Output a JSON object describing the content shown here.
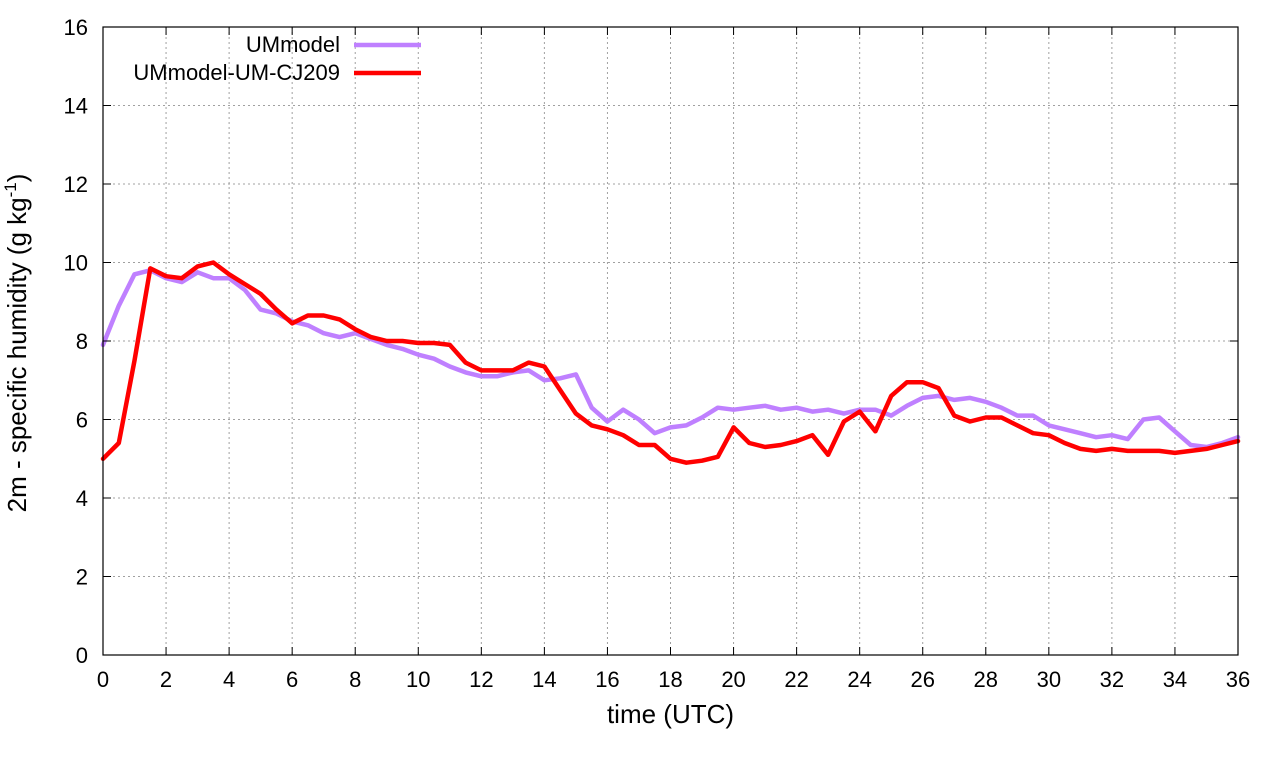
{
  "chart_data": {
    "type": "line",
    "title": "",
    "xlabel": "time (UTC)",
    "ylabel_main": "2m - specific humidity (g kg",
    "ylabel_sup": "-1",
    "ylabel_close": ")",
    "xlim": [
      0,
      36
    ],
    "ylim": [
      0,
      16
    ],
    "xticks": [
      0,
      2,
      4,
      6,
      8,
      10,
      12,
      14,
      16,
      18,
      20,
      22,
      24,
      26,
      28,
      30,
      32,
      34,
      36
    ],
    "yticks": [
      0,
      2,
      4,
      6,
      8,
      10,
      12,
      14,
      16
    ],
    "grid": true,
    "legend_position": "top-left",
    "x": [
      0,
      0.5,
      1,
      1.5,
      2,
      2.5,
      3,
      3.5,
      4,
      4.5,
      5,
      5.5,
      6,
      6.5,
      7,
      7.5,
      8,
      8.5,
      9,
      9.5,
      10,
      10.5,
      11,
      11.5,
      12,
      12.5,
      13,
      13.5,
      14,
      14.5,
      15,
      15.5,
      16,
      16.5,
      17,
      17.5,
      18,
      18.5,
      19,
      19.5,
      20,
      20.5,
      21,
      21.5,
      22,
      22.5,
      23,
      23.5,
      24,
      24.5,
      25,
      25.5,
      26,
      26.5,
      27,
      27.5,
      28,
      28.5,
      29,
      29.5,
      30,
      30.5,
      31,
      31.5,
      32,
      32.5,
      33,
      33.5,
      34,
      34.5,
      35,
      35.5,
      36
    ],
    "series": [
      {
        "name": "UMmodel",
        "color": "#bf80ff",
        "values": [
          7.9,
          8.9,
          9.7,
          9.8,
          9.6,
          9.5,
          9.75,
          9.6,
          9.6,
          9.3,
          8.8,
          8.7,
          8.5,
          8.4,
          8.2,
          8.1,
          8.2,
          8.05,
          7.9,
          7.8,
          7.65,
          7.55,
          7.35,
          7.2,
          7.1,
          7.1,
          7.2,
          7.25,
          7.0,
          7.05,
          7.15,
          6.3,
          5.95,
          6.25,
          6.0,
          5.65,
          5.8,
          5.85,
          6.05,
          6.3,
          6.25,
          6.3,
          6.35,
          6.25,
          6.3,
          6.2,
          6.25,
          6.15,
          6.25,
          6.25,
          6.1,
          6.35,
          6.55,
          6.6,
          6.5,
          6.55,
          6.45,
          6.3,
          6.1,
          6.1,
          5.85,
          5.75,
          5.65,
          5.55,
          5.6,
          5.5,
          6.0,
          6.05,
          5.7,
          5.35,
          5.3,
          5.4,
          5.55
        ]
      },
      {
        "name": "UMmodel-UM-CJ209",
        "color": "#ff0000",
        "values": [
          5.0,
          5.4,
          7.5,
          9.85,
          9.65,
          9.6,
          9.9,
          10.0,
          9.7,
          9.45,
          9.2,
          8.8,
          8.45,
          8.65,
          8.65,
          8.55,
          8.3,
          8.1,
          8.0,
          8.0,
          7.95,
          7.95,
          7.9,
          7.45,
          7.25,
          7.25,
          7.25,
          7.45,
          7.35,
          6.75,
          6.15,
          5.85,
          5.75,
          5.6,
          5.35,
          5.35,
          5.0,
          4.9,
          4.95,
          5.05,
          5.8,
          5.4,
          5.3,
          5.35,
          5.45,
          5.6,
          5.1,
          5.95,
          6.2,
          5.7,
          6.6,
          6.95,
          6.95,
          6.8,
          6.1,
          5.95,
          6.05,
          6.05,
          5.85,
          5.65,
          5.6,
          5.4,
          5.25,
          5.2,
          5.25,
          5.2,
          5.2,
          5.2,
          5.15,
          5.2,
          5.25,
          5.35,
          5.45
        ]
      }
    ]
  }
}
